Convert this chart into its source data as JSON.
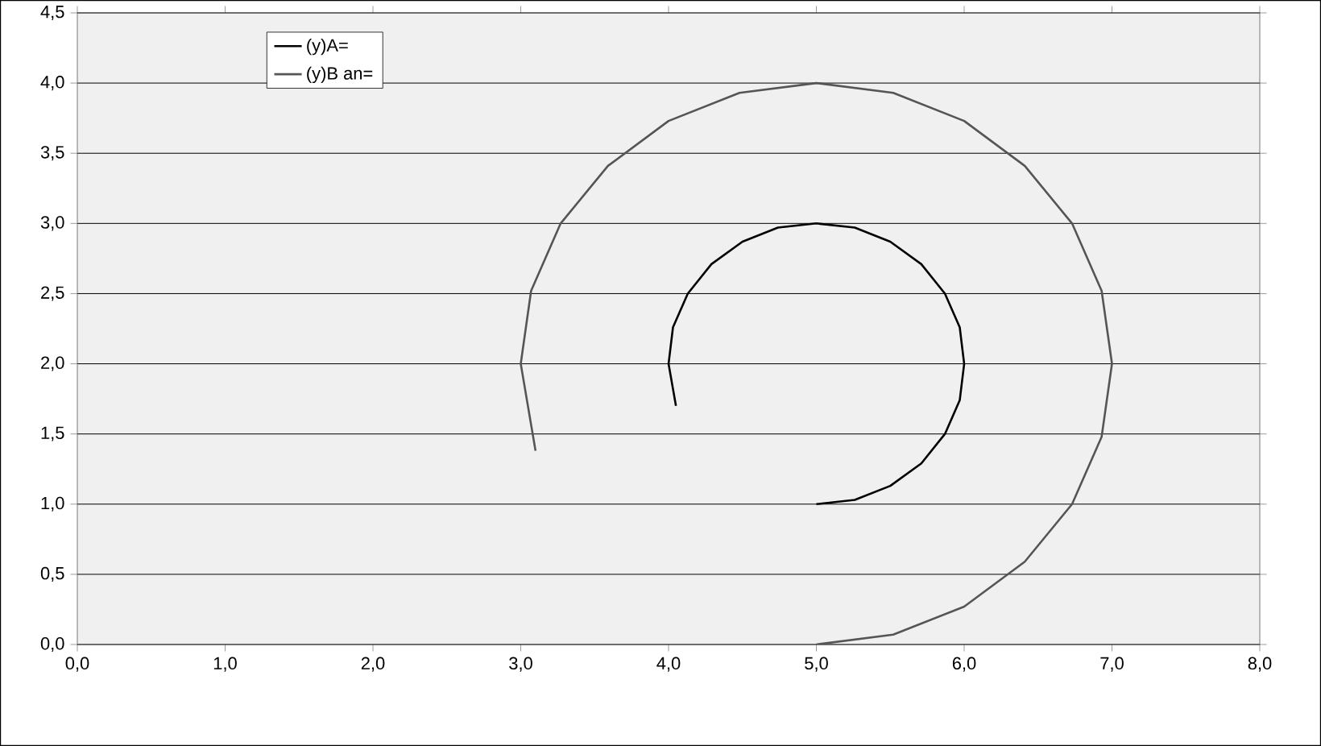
{
  "chart_data": {
    "type": "line",
    "xlim": [
      0,
      8
    ],
    "ylim": [
      0,
      4.5
    ],
    "xticks": [
      {
        "value": 0,
        "label": "0,0"
      },
      {
        "value": 1,
        "label": "1,0"
      },
      {
        "value": 2,
        "label": "2,0"
      },
      {
        "value": 3,
        "label": "3,0"
      },
      {
        "value": 4,
        "label": "4,0"
      },
      {
        "value": 5,
        "label": "5,0"
      },
      {
        "value": 6,
        "label": "6,0"
      },
      {
        "value": 7,
        "label": "7,0"
      },
      {
        "value": 8,
        "label": "8,0"
      }
    ],
    "yticks": [
      {
        "value": 0,
        "label": "0,0"
      },
      {
        "value": 0.5,
        "label": "0,5"
      },
      {
        "value": 1,
        "label": "1,0"
      },
      {
        "value": 1.5,
        "label": "1,5"
      },
      {
        "value": 2,
        "label": "2,0"
      },
      {
        "value": 2.5,
        "label": "2,5"
      },
      {
        "value": 3,
        "label": "3,0"
      },
      {
        "value": 3.5,
        "label": "3,5"
      },
      {
        "value": 4,
        "label": "4,0"
      },
      {
        "value": 4.5,
        "label": "4,5"
      }
    ],
    "grid": "y",
    "legend": "top left",
    "series": [
      {
        "name": "(y)A=",
        "color": "#000000",
        "x": [
          5,
          5.26,
          5.5,
          5.71,
          5.87,
          5.97,
          6,
          5.97,
          5.87,
          5.71,
          5.5,
          5.26,
          5,
          4.74,
          4.5,
          4.29,
          4.13,
          4.03,
          4,
          4.05
        ],
        "values": [
          1,
          1.03,
          1.13,
          1.29,
          1.5,
          1.74,
          2,
          2.26,
          2.5,
          2.71,
          2.87,
          2.97,
          3,
          2.97,
          2.87,
          2.71,
          2.5,
          2.26,
          2,
          1.7
        ]
      },
      {
        "name": "(y)B an=",
        "color": "#555555",
        "x": [
          5,
          5.52,
          6,
          6.41,
          6.73,
          6.93,
          7,
          6.93,
          6.73,
          6.41,
          6,
          5.52,
          5,
          4.48,
          4,
          3.59,
          3.27,
          3.07,
          3,
          3.1
        ],
        "values": [
          0,
          0.07,
          0.27,
          0.59,
          1,
          1.48,
          2,
          2.52,
          3,
          3.41,
          3.73,
          3.93,
          4,
          3.93,
          3.73,
          3.41,
          3,
          2.52,
          2,
          1.38
        ]
      }
    ]
  }
}
